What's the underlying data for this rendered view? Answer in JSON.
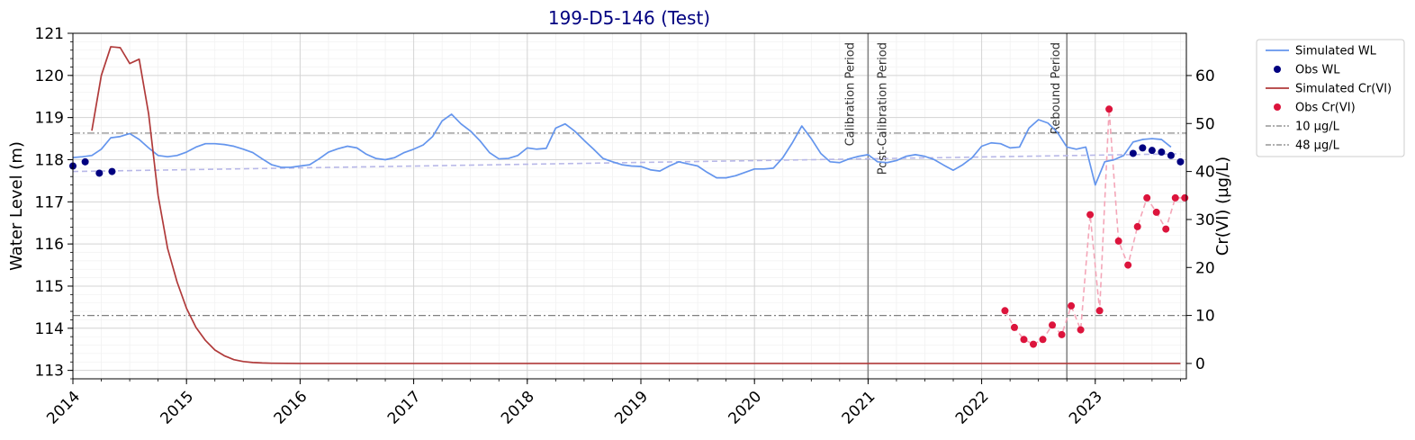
{
  "chart_data": {
    "type": "line",
    "title": "199-D5-146 (Test)",
    "title_color": "#000080",
    "ylabel_left": "Water Level (m)",
    "ylabel_right": "Cr(VI) (µg/L)",
    "xlim": [
      "2014-01-01",
      "2023-10-20"
    ],
    "ylim_left": [
      112.8,
      121.0
    ],
    "ylim_right": [
      -3.2,
      68.8
    ],
    "grid": true,
    "legend_position": "outside-right",
    "x_ticks": [
      "2014",
      "2015",
      "2016",
      "2017",
      "2018",
      "2019",
      "2020",
      "2021",
      "2022",
      "2023"
    ],
    "y_ticks_left": [
      "113",
      "114",
      "115",
      "116",
      "117",
      "118",
      "119",
      "120",
      "121"
    ],
    "y_ticks_right": [
      "0",
      "10",
      "20",
      "30",
      "40",
      "50",
      "60"
    ],
    "thresholds": [
      {
        "label": "10 µg/L",
        "value": 10,
        "color": "#808080"
      },
      {
        "label": "48 µg/L",
        "value": 48,
        "color": "#808080"
      }
    ],
    "periods": [
      {
        "date": "2021-01-01",
        "labels": [
          "Calibration Period",
          "Post-Calibration Period"
        ]
      },
      {
        "date": "2022-10-01",
        "labels": [
          "Rebound Period"
        ]
      }
    ],
    "series": [
      {
        "name": "Simulated WL",
        "axis": "left",
        "kind": "line",
        "color": "#6495ED",
        "x": [
          "2014-01-01",
          "2014-02-01",
          "2014-03-01",
          "2014-04-01",
          "2014-05-01",
          "2014-06-01",
          "2014-07-01",
          "2014-08-01",
          "2014-09-01",
          "2014-10-01",
          "2014-11-01",
          "2014-12-01",
          "2015-01-01",
          "2015-02-01",
          "2015-03-01",
          "2015-04-01",
          "2015-05-01",
          "2015-06-01",
          "2015-07-01",
          "2015-08-01",
          "2015-09-01",
          "2015-10-01",
          "2015-11-01",
          "2015-12-01",
          "2016-01-01",
          "2016-02-01",
          "2016-03-01",
          "2016-04-01",
          "2016-05-01",
          "2016-06-01",
          "2016-07-01",
          "2016-08-01",
          "2016-09-01",
          "2016-10-01",
          "2016-11-01",
          "2016-12-01",
          "2017-01-01",
          "2017-02-01",
          "2017-03-01",
          "2017-04-01",
          "2017-05-01",
          "2017-06-01",
          "2017-07-01",
          "2017-08-01",
          "2017-09-01",
          "2017-10-01",
          "2017-11-01",
          "2017-12-01",
          "2018-01-01",
          "2018-02-01",
          "2018-03-01",
          "2018-04-01",
          "2018-05-01",
          "2018-06-01",
          "2018-07-01",
          "2018-08-01",
          "2018-09-01",
          "2018-10-01",
          "2018-11-01",
          "2018-12-01",
          "2019-01-01",
          "2019-02-01",
          "2019-03-01",
          "2019-04-01",
          "2019-05-01",
          "2019-06-01",
          "2019-07-01",
          "2019-08-01",
          "2019-09-01",
          "2019-10-01",
          "2019-11-01",
          "2019-12-01",
          "2020-01-01",
          "2020-02-01",
          "2020-03-01",
          "2020-04-01",
          "2020-05-01",
          "2020-06-01",
          "2020-07-01",
          "2020-08-01",
          "2020-09-01",
          "2020-10-01",
          "2020-11-01",
          "2020-12-01",
          "2021-01-01",
          "2021-02-01",
          "2021-03-01",
          "2021-04-01",
          "2021-05-01",
          "2021-06-01",
          "2021-07-01",
          "2021-08-01",
          "2021-09-01",
          "2021-10-01",
          "2021-11-01",
          "2021-12-01",
          "2022-01-01",
          "2022-02-01",
          "2022-03-01",
          "2022-04-01",
          "2022-05-01",
          "2022-06-01",
          "2022-07-01",
          "2022-08-01",
          "2022-09-01",
          "2022-10-01",
          "2022-11-01",
          "2022-12-01",
          "2023-01-01",
          "2023-02-01",
          "2023-03-01",
          "2023-04-01",
          "2023-05-01",
          "2023-06-01",
          "2023-07-01",
          "2023-08-01",
          "2023-09-01"
        ],
        "y": [
          118.05,
          118.07,
          118.1,
          118.25,
          118.52,
          118.55,
          118.62,
          118.48,
          118.28,
          118.1,
          118.07,
          118.1,
          118.18,
          118.3,
          118.38,
          118.38,
          118.36,
          118.32,
          118.25,
          118.17,
          118.02,
          117.88,
          117.82,
          117.82,
          117.85,
          117.88,
          118.02,
          118.18,
          118.26,
          118.32,
          118.28,
          118.13,
          118.03,
          118.0,
          118.05,
          118.17,
          118.25,
          118.35,
          118.55,
          118.92,
          119.08,
          118.85,
          118.68,
          118.45,
          118.17,
          118.02,
          118.03,
          118.1,
          118.28,
          118.25,
          118.27,
          118.75,
          118.85,
          118.68,
          118.46,
          118.25,
          118.03,
          117.95,
          117.88,
          117.85,
          117.84,
          117.76,
          117.73,
          117.85,
          117.95,
          117.9,
          117.85,
          117.7,
          117.57,
          117.57,
          117.62,
          117.7,
          117.78,
          117.78,
          117.8,
          118.05,
          118.4,
          118.8,
          118.5,
          118.15,
          117.95,
          117.93,
          118.02,
          118.08,
          118.12,
          117.95,
          117.93,
          117.98,
          118.08,
          118.12,
          118.08,
          118.0,
          117.87,
          117.75,
          117.88,
          118.05,
          118.32,
          118.4,
          118.38,
          118.28,
          118.3,
          118.75,
          118.95,
          118.87,
          118.65,
          118.3,
          118.25,
          118.3,
          117.4,
          117.95,
          118.0,
          118.1,
          118.42,
          118.48,
          118.5,
          118.48,
          118.3
        ]
      },
      {
        "name": "Obs WL",
        "axis": "left",
        "kind": "scatter",
        "color": "#000080",
        "x": [
          "2014-01-01",
          "2014-02-10",
          "2014-03-25",
          "2014-05-05",
          "2023-05-01",
          "2023-06-01",
          "2023-07-01",
          "2023-08-01",
          "2023-09-01",
          "2023-10-01"
        ],
        "y": [
          117.85,
          117.95,
          117.68,
          117.72,
          118.15,
          118.28,
          118.22,
          118.18,
          118.1,
          117.95
        ]
      },
      {
        "name": "Simulated Cr(VI)",
        "axis": "right",
        "kind": "line",
        "color": "#B03A3A",
        "x": [
          "2014-03-01",
          "2014-04-01",
          "2014-05-01",
          "2014-06-01",
          "2014-07-01",
          "2014-08-01",
          "2014-09-01",
          "2014-10-01",
          "2014-11-01",
          "2014-12-01",
          "2015-01-01",
          "2015-02-01",
          "2015-03-01",
          "2015-04-01",
          "2015-05-01",
          "2015-06-01",
          "2015-07-01",
          "2015-08-01",
          "2015-09-01",
          "2015-10-01",
          "2016-01-01",
          "2017-01-01",
          "2018-01-01",
          "2019-01-01",
          "2020-01-01",
          "2021-01-01",
          "2022-01-01",
          "2023-01-01",
          "2023-10-01"
        ],
        "y": [
          48.5,
          60.0,
          66.0,
          65.8,
          62.5,
          63.4,
          52.0,
          35.0,
          24.0,
          17.0,
          11.5,
          7.5,
          4.8,
          2.8,
          1.6,
          0.8,
          0.4,
          0.2,
          0.1,
          0.05,
          0,
          0,
          0,
          0,
          0,
          0,
          0,
          0,
          0
        ]
      },
      {
        "name": "Obs Cr(VI)",
        "axis": "right",
        "kind": "scatter",
        "color": "#DC143C",
        "x": [
          "2022-03-15",
          "2022-04-15",
          "2022-05-15",
          "2022-06-15",
          "2022-07-15",
          "2022-08-15",
          "2022-09-15",
          "2022-10-15",
          "2022-11-15",
          "2022-12-15",
          "2023-01-15",
          "2023-02-15",
          "2023-03-15",
          "2023-04-15",
          "2023-05-15",
          "2023-06-15",
          "2023-07-15",
          "2023-08-15",
          "2023-09-15",
          "2023-10-15"
        ],
        "y": [
          11.0,
          7.5,
          5.0,
          4.0,
          5.0,
          8.0,
          6.0,
          12.0,
          7.0,
          31.0,
          11.0,
          53.0,
          25.5,
          20.5,
          28.5,
          34.5,
          31.5,
          28.0,
          34.5,
          34.5
        ]
      }
    ],
    "trend_lines": [
      {
        "axis": "left",
        "color": "#B8B8E8",
        "style": "dashed",
        "x": [
          "2014-01-01",
          "2023-10-01"
        ],
        "y": [
          117.72,
          118.14
        ]
      }
    ],
    "legend": [
      {
        "label": "Simulated WL",
        "kind": "line",
        "color": "#6495ED"
      },
      {
        "label": "Obs WL",
        "kind": "marker",
        "color": "#000080"
      },
      {
        "label": "Simulated Cr(VI)",
        "kind": "line",
        "color": "#B03A3A"
      },
      {
        "label": "Obs Cr(VI)",
        "kind": "marker",
        "color": "#DC143C"
      },
      {
        "label": "10 µg/L",
        "kind": "dashdot",
        "color": "#808080"
      },
      {
        "label": "48 µg/L",
        "kind": "dashdot",
        "color": "#808080"
      }
    ]
  }
}
